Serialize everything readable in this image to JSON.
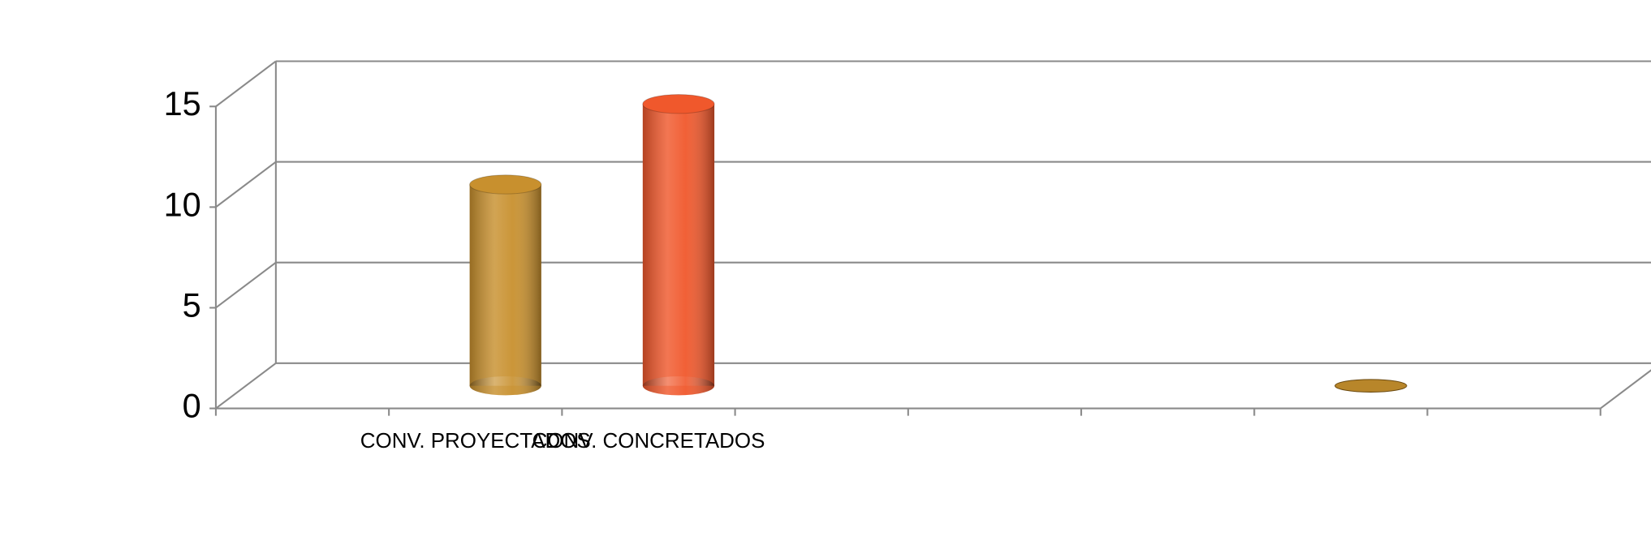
{
  "chart_data": {
    "type": "bar3d",
    "categories": [
      null,
      "CONV. PROYECTADOS",
      "CONV. CONCRETADOS",
      null,
      null,
      null,
      null,
      null
    ],
    "values": [
      null,
      10,
      14,
      null,
      null,
      null,
      0,
      null
    ],
    "colors": [
      null,
      "#c8902e",
      "#f0582c",
      null,
      null,
      null,
      "#b8862a",
      null
    ],
    "ylim": [
      0,
      15
    ],
    "yticks": [
      0,
      5,
      10,
      15
    ],
    "grid": true
  }
}
